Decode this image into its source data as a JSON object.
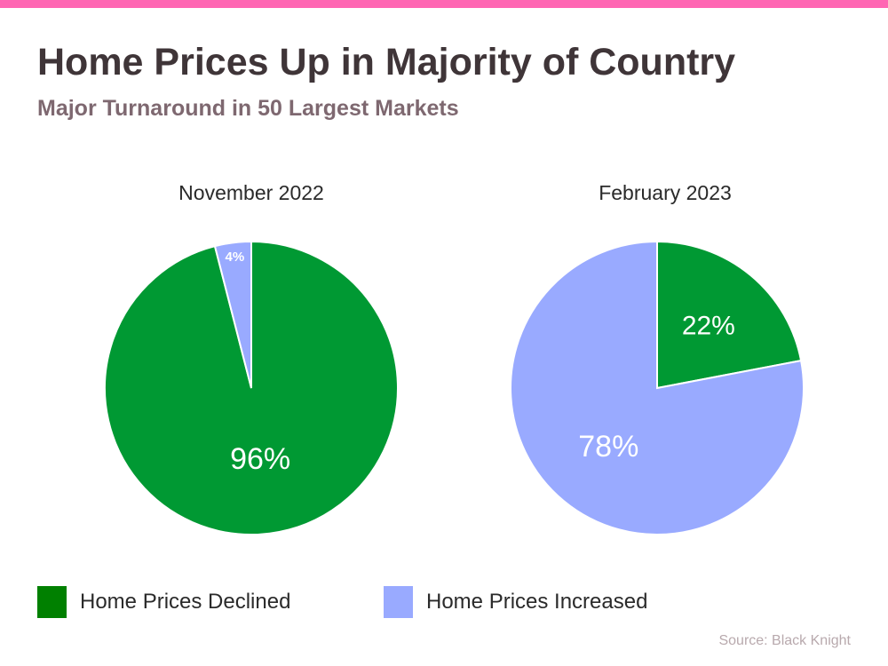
{
  "title": "Home Prices Up in Majority of Country",
  "subtitle": "Major Turnaround in 50 Largest Markets",
  "source": "Source: Black Knight",
  "colors": {
    "accent_bar": "#ff66b3",
    "declined": "#009933",
    "increased": "#99aaff",
    "legend_declined": "#008000"
  },
  "legend": [
    {
      "label": "Home Prices Declined",
      "color": "#008000"
    },
    {
      "label": "Home Prices Increased",
      "color": "#99aaff"
    }
  ],
  "chart_data": [
    {
      "type": "pie",
      "title": "November 2022",
      "slices": [
        {
          "name": "Home Prices Declined",
          "value": 96,
          "label": "96%",
          "color": "#009933"
        },
        {
          "name": "Home Prices Increased",
          "value": 4,
          "label": "4%",
          "color": "#99aaff"
        }
      ]
    },
    {
      "type": "pie",
      "title": "February 2023",
      "slices": [
        {
          "name": "Home Prices Declined",
          "value": 22,
          "label": "22%",
          "color": "#009933"
        },
        {
          "name": "Home Prices Increased",
          "value": 78,
          "label": "78%",
          "color": "#99aaff"
        }
      ]
    }
  ]
}
